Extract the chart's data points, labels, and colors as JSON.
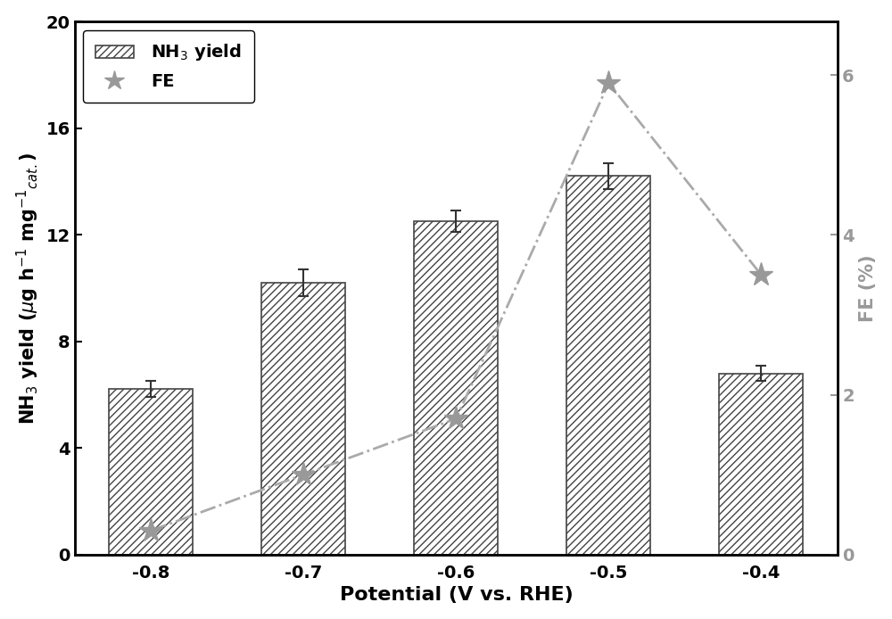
{
  "categories": [
    "-0.8",
    "-0.7",
    "-0.6",
    "-0.5",
    "-0.4"
  ],
  "bar_values": [
    6.2,
    10.2,
    12.5,
    14.2,
    6.8
  ],
  "bar_errors": [
    0.3,
    0.5,
    0.4,
    0.5,
    0.3
  ],
  "fe_values": [
    0.3,
    1.0,
    1.7,
    5.9,
    3.5
  ],
  "hatch_color": "#444444",
  "line_color": "#aaaaaa",
  "marker_color": "#999999",
  "ylabel_left": "NH$_3$ yield ($\\mu$g h$^{-1}$ mg$^{-1}$$_{cat.}$)",
  "ylabel_right": "FE (%)",
  "xlabel": "Potential (V vs. RHE)",
  "ylim_left": [
    0,
    20
  ],
  "ylim_right": [
    0,
    6.67
  ],
  "yticks_left": [
    0,
    4,
    8,
    12,
    16,
    20
  ],
  "yticks_right": [
    0,
    2,
    4,
    6
  ],
  "legend_label_bar": "NH$_3$ yield",
  "legend_label_line": "FE",
  "label_fontsize": 15,
  "tick_fontsize": 14,
  "legend_fontsize": 14
}
